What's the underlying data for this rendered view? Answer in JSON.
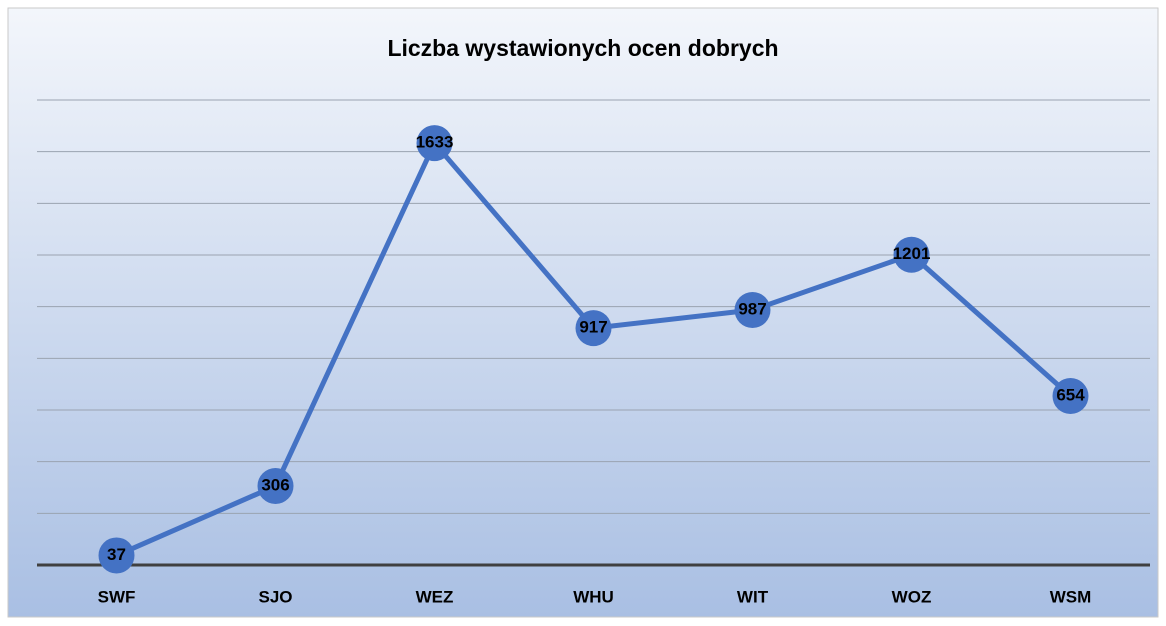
{
  "chart_data": {
    "type": "line",
    "title": "Liczba wystawionych ocen dobrych",
    "categories": [
      "SWF",
      "SJO",
      "WEZ",
      "WHU",
      "WIT",
      "WOZ",
      "WSM"
    ],
    "values": [
      37,
      306,
      1633,
      917,
      987,
      1201,
      654
    ],
    "color": "#4472c4",
    "ylim": [
      0,
      1800
    ],
    "yticks": [
      0,
      200,
      400,
      600,
      800,
      1000,
      1200,
      1400,
      1600,
      1800
    ],
    "grid": true
  }
}
